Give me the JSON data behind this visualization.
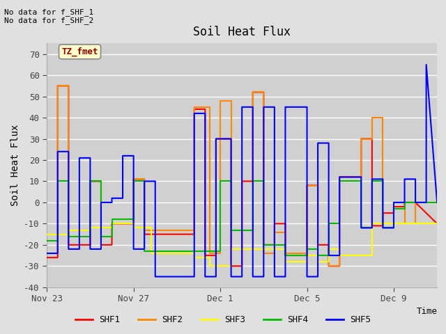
{
  "title": "Soil Heat Flux",
  "ylabel": "Soil Heat Flux",
  "xlabel": "Time",
  "ylim": [
    -40,
    75
  ],
  "yticks": [
    -40,
    -30,
    -20,
    -10,
    0,
    10,
    20,
    30,
    40,
    50,
    60,
    70
  ],
  "top_annotation": "No data for f_SHF_1\nNo data for f_SHF_2",
  "tz_label": "TZ_fmet",
  "legend_entries": [
    "SHF1",
    "SHF2",
    "SHF3",
    "SHF4",
    "SHF5"
  ],
  "legend_colors": [
    "#ff0000",
    "#ff8800",
    "#ffff00",
    "#00bb00",
    "#0000ff"
  ],
  "bg_color": "#e0e0e0",
  "plot_bg_color": "#d0d0d0",
  "x_tick_labels": [
    "Nov 23",
    "Nov 27",
    "Dec 1",
    "Dec 5",
    "Dec 9"
  ],
  "x_tick_positions": [
    0,
    4,
    8,
    12,
    16
  ],
  "total_days": 18,
  "series": {
    "SHF1": {
      "color": "#ff0000",
      "t": [
        0,
        0.5,
        0.5,
        1.0,
        1.0,
        2.0,
        2.0,
        2.5,
        2.5,
        3.0,
        3.0,
        4.0,
        4.0,
        4.5,
        4.5,
        4.8,
        4.8,
        6.8,
        6.8,
        7.3,
        7.3,
        7.8,
        7.8,
        8.5,
        8.5,
        9.0,
        9.0,
        9.5,
        9.5,
        10.0,
        10.0,
        10.5,
        10.5,
        11.0,
        11.0,
        12.0,
        12.0,
        12.5,
        12.5,
        13.0,
        13.0,
        13.5,
        13.5,
        14.5,
        14.5,
        15.0,
        15.0,
        15.5,
        15.5,
        16.0,
        16.0,
        16.5,
        16.5,
        17.0,
        17.0,
        18.0
      ],
      "v": [
        -26,
        -26,
        55,
        55,
        -20,
        -20,
        10,
        10,
        -20,
        -20,
        -10,
        -10,
        11,
        11,
        -15,
        -15,
        -15,
        -15,
        44,
        44,
        -25,
        -25,
        30,
        30,
        -30,
        -30,
        10,
        10,
        52,
        52,
        -20,
        -20,
        -10,
        -10,
        -25,
        -25,
        8,
        8,
        -20,
        -20,
        -30,
        -30,
        12,
        12,
        30,
        30,
        -11,
        -11,
        -5,
        -5,
        -2,
        -2,
        0,
        0,
        0,
        -10
      ]
    },
    "SHF2": {
      "color": "#ff8800",
      "t": [
        0,
        0.5,
        0.5,
        1.0,
        1.0,
        2.0,
        2.0,
        2.5,
        2.5,
        3.0,
        3.0,
        4.0,
        4.0,
        4.5,
        4.5,
        4.8,
        4.8,
        6.8,
        6.8,
        7.5,
        7.5,
        8.0,
        8.0,
        8.5,
        8.5,
        9.5,
        9.5,
        10.0,
        10.0,
        10.5,
        10.5,
        11.0,
        11.0,
        12.0,
        12.0,
        12.5,
        12.5,
        13.0,
        13.0,
        13.5,
        13.5,
        14.5,
        14.5,
        15.0,
        15.0,
        15.5,
        15.5,
        16.0,
        16.0,
        16.5,
        16.5,
        17.0,
        17.0,
        18.0
      ],
      "v": [
        -15,
        -15,
        55,
        55,
        -13,
        -13,
        10,
        10,
        -12,
        -12,
        -10,
        -10,
        11,
        11,
        -13,
        -13,
        -13,
        -13,
        45,
        45,
        -24,
        -24,
        48,
        48,
        -22,
        -22,
        52,
        52,
        -24,
        -24,
        -14,
        -14,
        -24,
        -24,
        8,
        8,
        -25,
        -25,
        -30,
        -30,
        12,
        12,
        30,
        30,
        40,
        40,
        -10,
        -10,
        -10,
        -10,
        0,
        0,
        -10,
        -10
      ]
    },
    "SHF3": {
      "color": "#ffff00",
      "t": [
        0,
        1.0,
        1.0,
        2.0,
        2.0,
        3.0,
        3.0,
        4.0,
        4.0,
        4.8,
        4.8,
        6.8,
        6.8,
        7.5,
        7.5,
        8.0,
        8.0,
        8.5,
        8.5,
        9.5,
        9.5,
        10.0,
        10.0,
        10.5,
        10.5,
        11.0,
        11.0,
        12.0,
        12.0,
        12.5,
        12.5,
        13.0,
        13.0,
        13.5,
        13.5,
        14.5,
        14.5,
        15.0,
        15.0,
        15.5,
        15.5,
        16.0,
        16.0,
        17.0,
        17.0,
        18.0
      ],
      "v": [
        -15,
        -15,
        -13,
        -13,
        -12,
        -12,
        -10,
        -10,
        -12,
        -12,
        -24,
        -24,
        -26,
        -26,
        -30,
        -30,
        -30,
        -30,
        -22,
        -22,
        -22,
        -22,
        -22,
        -22,
        -22,
        -22,
        -28,
        -28,
        -25,
        -25,
        -28,
        -28,
        -22,
        -22,
        -25,
        -25,
        -25,
        -25,
        -10,
        -10,
        -10,
        -10,
        -10,
        -10,
        -10,
        -10
      ]
    },
    "SHF4": {
      "color": "#00bb00",
      "t": [
        0,
        0.5,
        0.5,
        1.0,
        1.0,
        2.0,
        2.0,
        2.5,
        2.5,
        3.0,
        3.0,
        4.0,
        4.0,
        4.5,
        4.5,
        4.8,
        4.8,
        6.8,
        6.8,
        7.5,
        7.5,
        8.0,
        8.0,
        8.5,
        8.5,
        9.5,
        9.5,
        10.0,
        10.0,
        10.5,
        10.5,
        11.0,
        11.0,
        12.0,
        12.0,
        12.5,
        12.5,
        13.0,
        13.0,
        13.5,
        13.5,
        14.5,
        14.5,
        15.0,
        15.0,
        15.5,
        15.5,
        16.0,
        16.0,
        16.5,
        16.5,
        17.0,
        17.0,
        18.0
      ],
      "v": [
        -18,
        -18,
        10,
        10,
        -16,
        -16,
        10,
        10,
        -16,
        -16,
        -8,
        -8,
        10,
        10,
        -23,
        -23,
        -23,
        -23,
        -23,
        -23,
        -23,
        -23,
        10,
        10,
        -13,
        -13,
        10,
        10,
        -20,
        -20,
        -20,
        -20,
        -25,
        -25,
        -22,
        -22,
        -25,
        -25,
        -10,
        -10,
        10,
        10,
        -12,
        -12,
        10,
        10,
        -12,
        -12,
        -3,
        -3,
        0,
        0,
        0,
        0
      ]
    },
    "SHF5": {
      "color": "#0000ff",
      "t": [
        0,
        0.5,
        0.5,
        1.0,
        1.0,
        1.5,
        1.5,
        2.0,
        2.0,
        2.5,
        2.5,
        3.0,
        3.0,
        3.5,
        3.5,
        4.0,
        4.0,
        4.5,
        4.5,
        5.0,
        5.0,
        5.5,
        5.5,
        6.0,
        6.0,
        6.8,
        6.8,
        7.3,
        7.3,
        7.8,
        7.8,
        8.5,
        8.5,
        9.0,
        9.0,
        9.5,
        9.5,
        10.0,
        10.0,
        10.5,
        10.5,
        11.0,
        11.0,
        12.0,
        12.0,
        12.5,
        12.5,
        13.0,
        13.0,
        13.5,
        13.5,
        14.5,
        14.5,
        15.0,
        15.0,
        15.5,
        15.5,
        16.0,
        16.0,
        16.5,
        16.5,
        17.0,
        17.0,
        17.5,
        17.5,
        18.0
      ],
      "v": [
        -24,
        -24,
        24,
        24,
        -22,
        -22,
        21,
        21,
        -22,
        -22,
        0,
        0,
        2,
        2,
        22,
        22,
        -22,
        -22,
        10,
        10,
        -35,
        -35,
        -35,
        -35,
        -35,
        -35,
        42,
        42,
        -35,
        -35,
        30,
        30,
        -35,
        -35,
        45,
        45,
        -35,
        -35,
        45,
        45,
        -35,
        -35,
        45,
        45,
        -35,
        -35,
        28,
        28,
        -25,
        -25,
        12,
        12,
        -12,
        -12,
        11,
        11,
        -12,
        -12,
        0,
        0,
        11,
        11,
        0,
        0,
        65,
        0
      ]
    }
  }
}
